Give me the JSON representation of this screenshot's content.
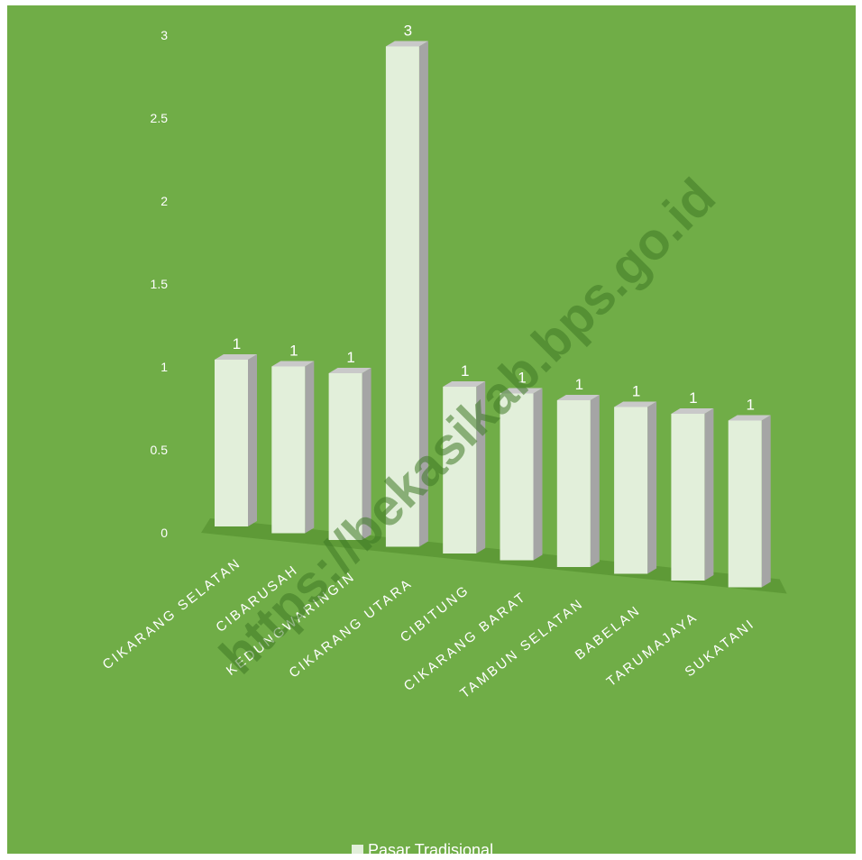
{
  "chart_data": {
    "type": "bar",
    "categories": [
      "CIKARANG SELATAN",
      "CIBARUSAH",
      "KEDUNGWARINGIN",
      "CIKARANG UTARA",
      "CIBITUNG",
      "CIKARANG BARAT",
      "TAMBUN SELATAN",
      "BABELAN",
      "TARUMAJAYA",
      "SUKATANI"
    ],
    "series": [
      {
        "name": "Pasar Tradisional",
        "values": [
          1,
          1,
          1,
          3,
          1,
          1,
          1,
          1,
          1,
          1
        ]
      }
    ],
    "data_labels": [
      "1",
      "1",
      "1",
      "3",
      "1",
      "1",
      "1",
      "1",
      "1",
      "1"
    ],
    "yticks": [
      "0",
      "0.5",
      "1",
      "1.5",
      "2",
      "2.5",
      "3"
    ],
    "ylim": [
      0,
      3
    ],
    "legend_position": "bottom",
    "colors": {
      "background": "#70ad47",
      "bar_front": "#e2efda",
      "bar_side": "#a5a5a5",
      "bar_top": "#c9c9c9",
      "floor": "#5e9a37"
    }
  },
  "watermark": "https://bekasikab.bps.go.id"
}
